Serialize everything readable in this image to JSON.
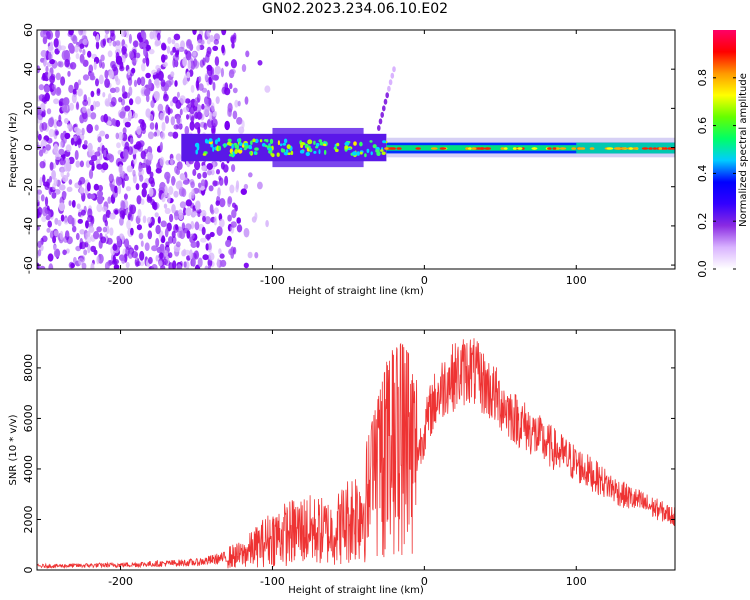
{
  "title": "GN02.2023.234.06.10.E02",
  "chart_data": [
    {
      "type": "heatmap",
      "xlabel": "Height of straight line (km)",
      "ylabel": "Frequency (Hz)",
      "xlim": [
        -255,
        165
      ],
      "ylim": [
        -62,
        60
      ],
      "x_ticks": [
        "-200",
        "-100",
        "0",
        "100"
      ],
      "y_ticks": [
        "-60",
        "-40",
        "-20",
        "0",
        "20",
        "40",
        "60"
      ],
      "colorbar": {
        "label": "Normalized spectral amplitude",
        "range": [
          0,
          1
        ],
        "ticks": [
          "0.0",
          "0.2",
          "0.4",
          "0.6",
          "0.8"
        ],
        "colors": [
          "#ffffff",
          "#d9b3ff",
          "#8a2be2",
          "#3300ff",
          "#0000ff",
          "#00ccff",
          "#00ff66",
          "#66ff00",
          "#ffff00",
          "#ff9900",
          "#ff0000",
          "#ff0066"
        ]
      },
      "features": {
        "noise_region_x": [
          -255,
          -120
        ],
        "signal_band_x": [
          -160,
          165
        ],
        "signal_band_halfwidth_hz": 6,
        "chirp": {
          "x": [
            -30,
            -20
          ],
          "y": [
            10,
            40
          ]
        },
        "narrow_line_x": [
          -25,
          165
        ]
      }
    },
    {
      "type": "line",
      "xlabel": "Height of straight line (km)",
      "ylabel": "SNR (10 * v/v)",
      "xlim": [
        -255,
        165
      ],
      "ylim": [
        0,
        9500
      ],
      "x_ticks": [
        "-200",
        "-100",
        "0",
        "100"
      ],
      "y_ticks": [
        "0",
        "2000",
        "4000",
        "6000",
        "8000"
      ],
      "series_color": "#ee3333",
      "envelope": [
        {
          "x": -255,
          "y": 150
        },
        {
          "x": -200,
          "y": 200
        },
        {
          "x": -150,
          "y": 300
        },
        {
          "x": -120,
          "y": 600
        },
        {
          "x": -100,
          "y": 1300
        },
        {
          "x": -80,
          "y": 1600
        },
        {
          "x": -60,
          "y": 1500
        },
        {
          "x": -40,
          "y": 2500
        },
        {
          "x": -25,
          "y": 4500
        },
        {
          "x": -15,
          "y": 5000
        },
        {
          "x": -5,
          "y": 4500
        },
        {
          "x": 5,
          "y": 6500
        },
        {
          "x": 15,
          "y": 7500
        },
        {
          "x": 30,
          "y": 8000
        },
        {
          "x": 45,
          "y": 7000
        },
        {
          "x": 60,
          "y": 6000
        },
        {
          "x": 80,
          "y": 5000
        },
        {
          "x": 100,
          "y": 4200
        },
        {
          "x": 130,
          "y": 3000
        },
        {
          "x": 165,
          "y": 2100
        }
      ]
    }
  ]
}
